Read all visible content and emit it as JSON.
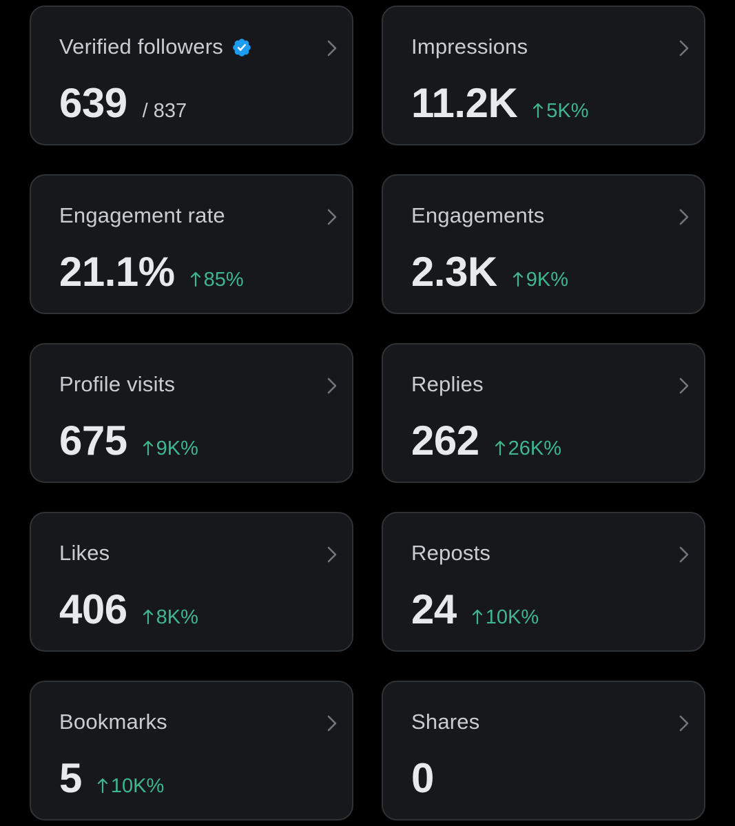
{
  "colors": {
    "background": "#000000",
    "card": "#16181c",
    "card_border": "#2f3336",
    "title_text": "#c9ccd1",
    "value_text": "#e7e9ea",
    "positive_change": "#3fb68b",
    "verified_badge": "#1d9bf0"
  },
  "icons": {
    "chevron": "chevron-right-icon",
    "verified": "verified-badge-icon",
    "arrow": "arrow-up-icon"
  },
  "cards": {
    "verified_followers": {
      "title": "Verified followers",
      "value": "639",
      "total": "/ 837"
    },
    "impressions": {
      "title": "Impressions",
      "value": "11.2K",
      "change": "5K%"
    },
    "engagement_rate": {
      "title": "Engagement rate",
      "value": "21.1%",
      "change": "85%"
    },
    "engagements": {
      "title": "Engagements",
      "value": "2.3K",
      "change": "9K%"
    },
    "profile_visits": {
      "title": "Profile visits",
      "value": "675",
      "change": "9K%"
    },
    "replies": {
      "title": "Replies",
      "value": "262",
      "change": "26K%"
    },
    "likes": {
      "title": "Likes",
      "value": "406",
      "change": "8K%"
    },
    "reposts": {
      "title": "Reposts",
      "value": "24",
      "change": "10K%"
    },
    "bookmarks": {
      "title": "Bookmarks",
      "value": "5",
      "change": "10K%"
    },
    "shares": {
      "title": "Shares",
      "value": "0"
    }
  }
}
